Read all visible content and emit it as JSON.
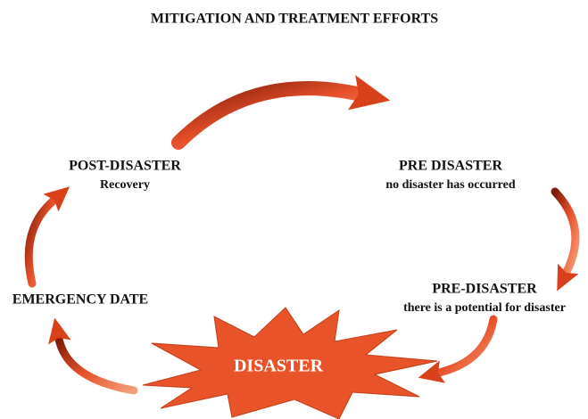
{
  "title": "MITIGATION AND TREATMENT EFFORTS",
  "nodes": [
    {
      "label": "POST-DISASTER",
      "sublabel": "Recovery"
    },
    {
      "label": "PRE DISASTER",
      "sublabel": "no disaster has occurred"
    },
    {
      "label": "PRE-DISASTER",
      "sublabel": "there is a potential for disaster"
    },
    {
      "label": "EMERGENCY DATE"
    },
    {
      "label": "DISASTER"
    }
  ]
}
